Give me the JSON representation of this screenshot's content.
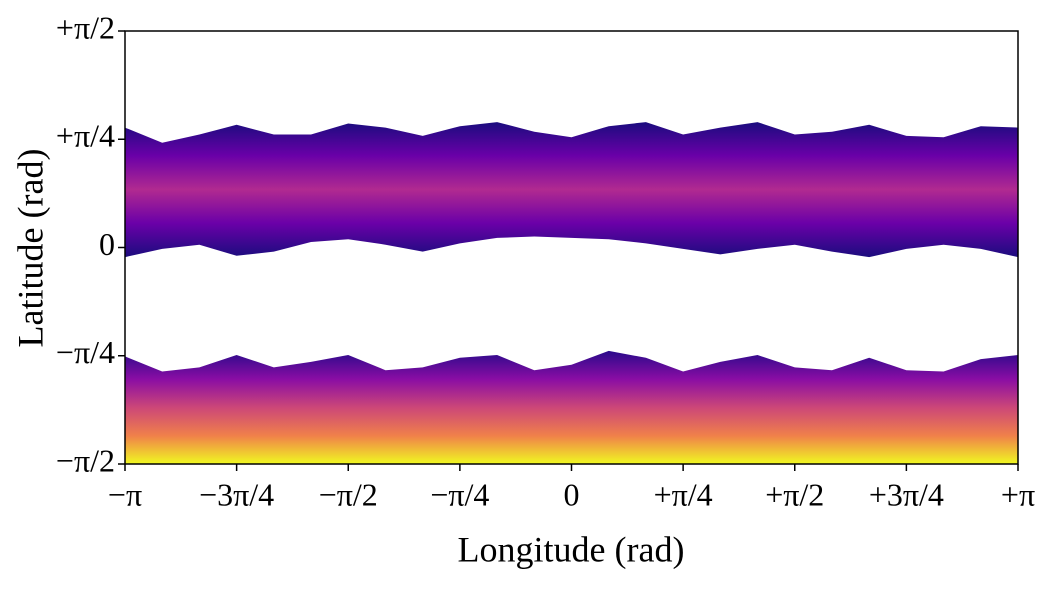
{
  "chart_data": {
    "type": "band",
    "xlabel": "Longitude (rad)",
    "ylabel": "Latitude (rad)",
    "x": [
      -3.14159,
      -2.87979,
      -2.61799,
      -2.35619,
      -2.0944,
      -1.8326,
      -1.5708,
      -1.309,
      -1.0472,
      -0.7854,
      -0.5236,
      -0.2618,
      0,
      0.2618,
      0.5236,
      0.7854,
      1.0472,
      1.309,
      1.5708,
      1.8326,
      2.0944,
      2.35619,
      2.61799,
      2.87979,
      3.14159
    ],
    "bands": [
      {
        "upper": [
          0.87,
          0.76,
          0.82,
          0.89,
          0.82,
          0.82,
          0.9,
          0.87,
          0.81,
          0.88,
          0.91,
          0.84,
          0.8,
          0.88,
          0.91,
          0.82,
          0.87,
          0.91,
          0.82,
          0.84,
          0.89,
          0.81,
          0.8,
          0.88,
          0.87
        ],
        "lower": [
          -0.07,
          -0.01,
          0.02,
          -0.06,
          -0.03,
          0.04,
          0.06,
          0.02,
          -0.03,
          0.03,
          0.07,
          0.08,
          0.07,
          0.06,
          0.03,
          -0.01,
          -0.05,
          -0.01,
          0.02,
          -0.03,
          -0.07,
          -0.01,
          0.02,
          -0.01,
          -0.07
        ],
        "colors": [
          "#1b0c7e",
          "#6a00a8",
          "#b12a90",
          "#6a00a8",
          "#1b0c7e"
        ]
      },
      {
        "upper": [
          -0.79,
          -0.9,
          -0.87,
          -0.78,
          -0.87,
          -0.83,
          -0.78,
          -0.89,
          -0.87,
          -0.8,
          -0.78,
          -0.89,
          -0.85,
          -0.75,
          -0.8,
          -0.9,
          -0.83,
          -0.78,
          -0.87,
          -0.89,
          -0.8,
          -0.89,
          -0.9,
          -0.81,
          -0.78
        ],
        "lower": [
          -1.5708,
          -1.5708,
          -1.5708,
          -1.5708,
          -1.5708,
          -1.5708,
          -1.5708,
          -1.5708,
          -1.5708,
          -1.5708,
          -1.5708,
          -1.5708,
          -1.5708,
          -1.5708,
          -1.5708,
          -1.5708,
          -1.5708,
          -1.5708,
          -1.5708,
          -1.5708,
          -1.5708,
          -1.5708,
          -1.5708,
          -1.5708,
          -1.5708
        ],
        "colors": [
          "#2a0a8a",
          "#8a0da4",
          "#cc4778",
          "#f0804a",
          "#f0f921"
        ]
      }
    ],
    "xlim": [
      -3.14159,
      3.14159
    ],
    "ylim": [
      -1.5708,
      1.5708
    ],
    "xticks": [
      {
        "value": -3.14159,
        "label": "−π"
      },
      {
        "value": -2.35619,
        "label": "−3π/4"
      },
      {
        "value": -1.5708,
        "label": "−π/2"
      },
      {
        "value": -0.7854,
        "label": "−π/4"
      },
      0,
      {
        "value": 0.7854,
        "label": "+π/4"
      },
      {
        "value": 1.5708,
        "label": "+π/2"
      },
      {
        "value": 2.35619,
        "label": "+3π/4"
      },
      {
        "value": 3.14159,
        "label": "+π"
      }
    ],
    "yticks": [
      {
        "value": -1.5708,
        "label": "−π/2"
      },
      {
        "value": -0.7854,
        "label": "−π/4"
      },
      0,
      {
        "value": 0.7854,
        "label": "+π/4"
      },
      {
        "value": 1.5708,
        "label": "+π/2"
      }
    ]
  }
}
